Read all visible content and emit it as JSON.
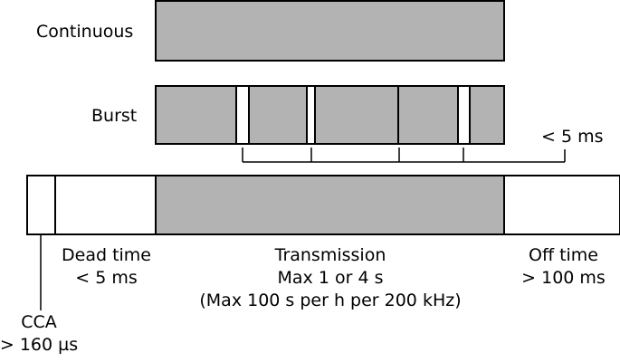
{
  "rows": {
    "continuous_label": "Continuous",
    "burst_label": "Burst"
  },
  "burst": {
    "gap_label": "< 5 ms"
  },
  "timeline": {
    "cca": {
      "line1": "CCA",
      "line2": "> 160 µs"
    },
    "dead_time": {
      "line1": "Dead time",
      "line2": "< 5 ms"
    },
    "transmission": {
      "line1": "Transmission",
      "line2": "Max 1 or 4 s",
      "line3": "(Max 100 s per h per 200 kHz)"
    },
    "off_time": {
      "line1": "Off time",
      "line2": "> 100 ms"
    }
  },
  "colors": {
    "fill": "#b3b3b3",
    "stroke": "#000000",
    "background": "#ffffff"
  }
}
